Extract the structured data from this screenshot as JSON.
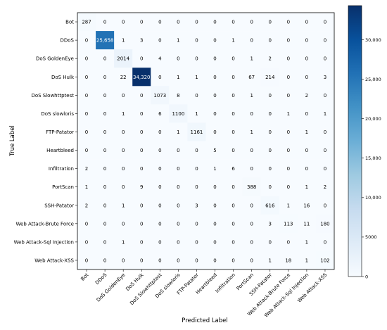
{
  "chart_data": {
    "type": "heatmap",
    "xlabel": "Predicted Label",
    "ylabel": "True Label",
    "row_labels": [
      "Bot",
      "DDoS",
      "DoS GoldenEye",
      "DoS Hulk",
      "DoS Slowhttptest",
      "DoS slowloris",
      "FTP-Patator",
      "Heartbleed",
      "Infiltration",
      "PortScan",
      "SSH-Patator",
      "Web Attack-Brute Force",
      "Web Attack-Sql Injection",
      "Web Attack-XSS"
    ],
    "col_labels": [
      "Bot",
      "DDoS",
      "DoS GoldenEye",
      "DoS Hulk",
      "DoS Slowhttptest",
      "DoS slowloris",
      "FTP-Patator",
      "Heartbleed",
      "Infiltration",
      "PortScan",
      "SSH-Patator",
      "Web Attack-Brute Force",
      "Web Attack-Sql Injection",
      "Web Attack-XSS"
    ],
    "values": [
      [
        287,
        0,
        0,
        0,
        0,
        0,
        0,
        0,
        0,
        0,
        0,
        0,
        0,
        0
      ],
      [
        0,
        25658,
        1,
        3,
        0,
        1,
        0,
        0,
        1,
        0,
        0,
        0,
        0,
        0
      ],
      [
        0,
        0,
        2014,
        0,
        4,
        0,
        0,
        0,
        0,
        1,
        2,
        0,
        0,
        0
      ],
      [
        0,
        0,
        22,
        34320,
        0,
        1,
        1,
        0,
        0,
        67,
        214,
        0,
        0,
        3
      ],
      [
        0,
        0,
        0,
        0,
        1073,
        8,
        0,
        0,
        0,
        1,
        0,
        0,
        2,
        0
      ],
      [
        0,
        0,
        1,
        0,
        6,
        1100,
        1,
        0,
        0,
        0,
        0,
        1,
        0,
        1
      ],
      [
        0,
        0,
        0,
        0,
        0,
        1,
        1161,
        0,
        0,
        1,
        0,
        0,
        1,
        0
      ],
      [
        0,
        0,
        0,
        0,
        0,
        0,
        0,
        5,
        0,
        0,
        0,
        0,
        0,
        0
      ],
      [
        2,
        0,
        0,
        0,
        0,
        0,
        0,
        1,
        6,
        0,
        0,
        0,
        0,
        0
      ],
      [
        1,
        0,
        0,
        9,
        0,
        0,
        0,
        0,
        0,
        388,
        0,
        0,
        1,
        2
      ],
      [
        2,
        0,
        1,
        0,
        0,
        0,
        3,
        0,
        0,
        0,
        616,
        1,
        16,
        0
      ],
      [
        0,
        0,
        0,
        0,
        0,
        0,
        0,
        0,
        0,
        0,
        3,
        113,
        11,
        180
      ],
      [
        0,
        0,
        1,
        0,
        0,
        0,
        0,
        0,
        0,
        0,
        0,
        0,
        1,
        0
      ],
      [
        0,
        0,
        0,
        0,
        0,
        0,
        0,
        0,
        0,
        0,
        1,
        18,
        1,
        102
      ]
    ],
    "colormap": "Blues",
    "colorbar": {
      "min": 0,
      "max": 34320,
      "ticks": [
        0,
        5000,
        10000,
        15000,
        20000,
        25000,
        30000
      ],
      "tick_labels": [
        "0",
        "5000",
        "10,000",
        "15,000",
        "20,000",
        "25,000",
        "30,000"
      ]
    }
  }
}
